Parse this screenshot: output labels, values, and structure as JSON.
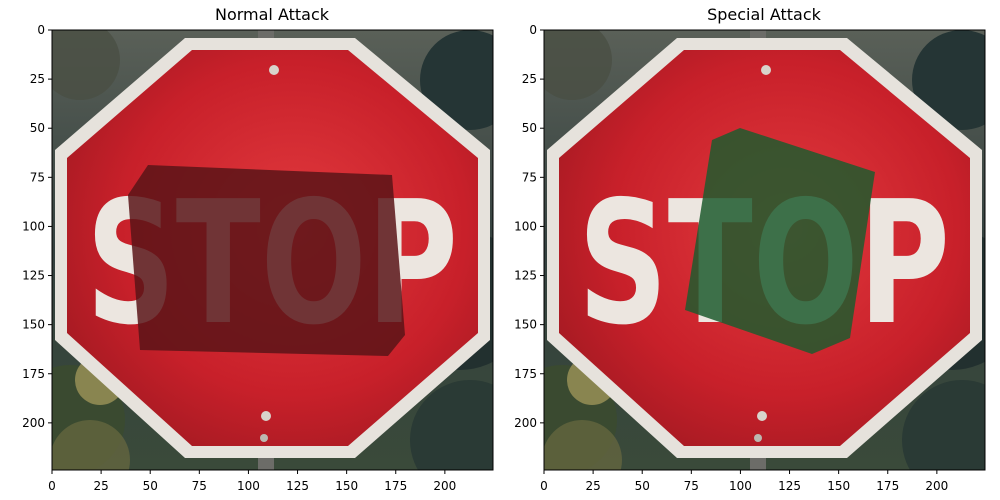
{
  "figure": {
    "panels": [
      {
        "title": "Normal Attack",
        "patch_color": "#5a1418",
        "patch_overlay": "rgba(180,180,170,0.55)"
      },
      {
        "title": "Special Attack",
        "patch_color": "#1f5a2e",
        "patch_overlay": "rgba(80,150,100,0.55)"
      }
    ],
    "sign_text": "STOP",
    "x_ticks": [
      "0",
      "25",
      "50",
      "75",
      "100",
      "125",
      "150",
      "175",
      "200"
    ],
    "y_ticks": [
      "0",
      "25",
      "50",
      "75",
      "100",
      "125",
      "150",
      "175",
      "200"
    ],
    "colors": {
      "sign_red": "#c8202a",
      "sign_border": "#e8e4e0",
      "foliage_dark": "#2a3a3a",
      "foliage_light": "#4a5a50"
    }
  }
}
